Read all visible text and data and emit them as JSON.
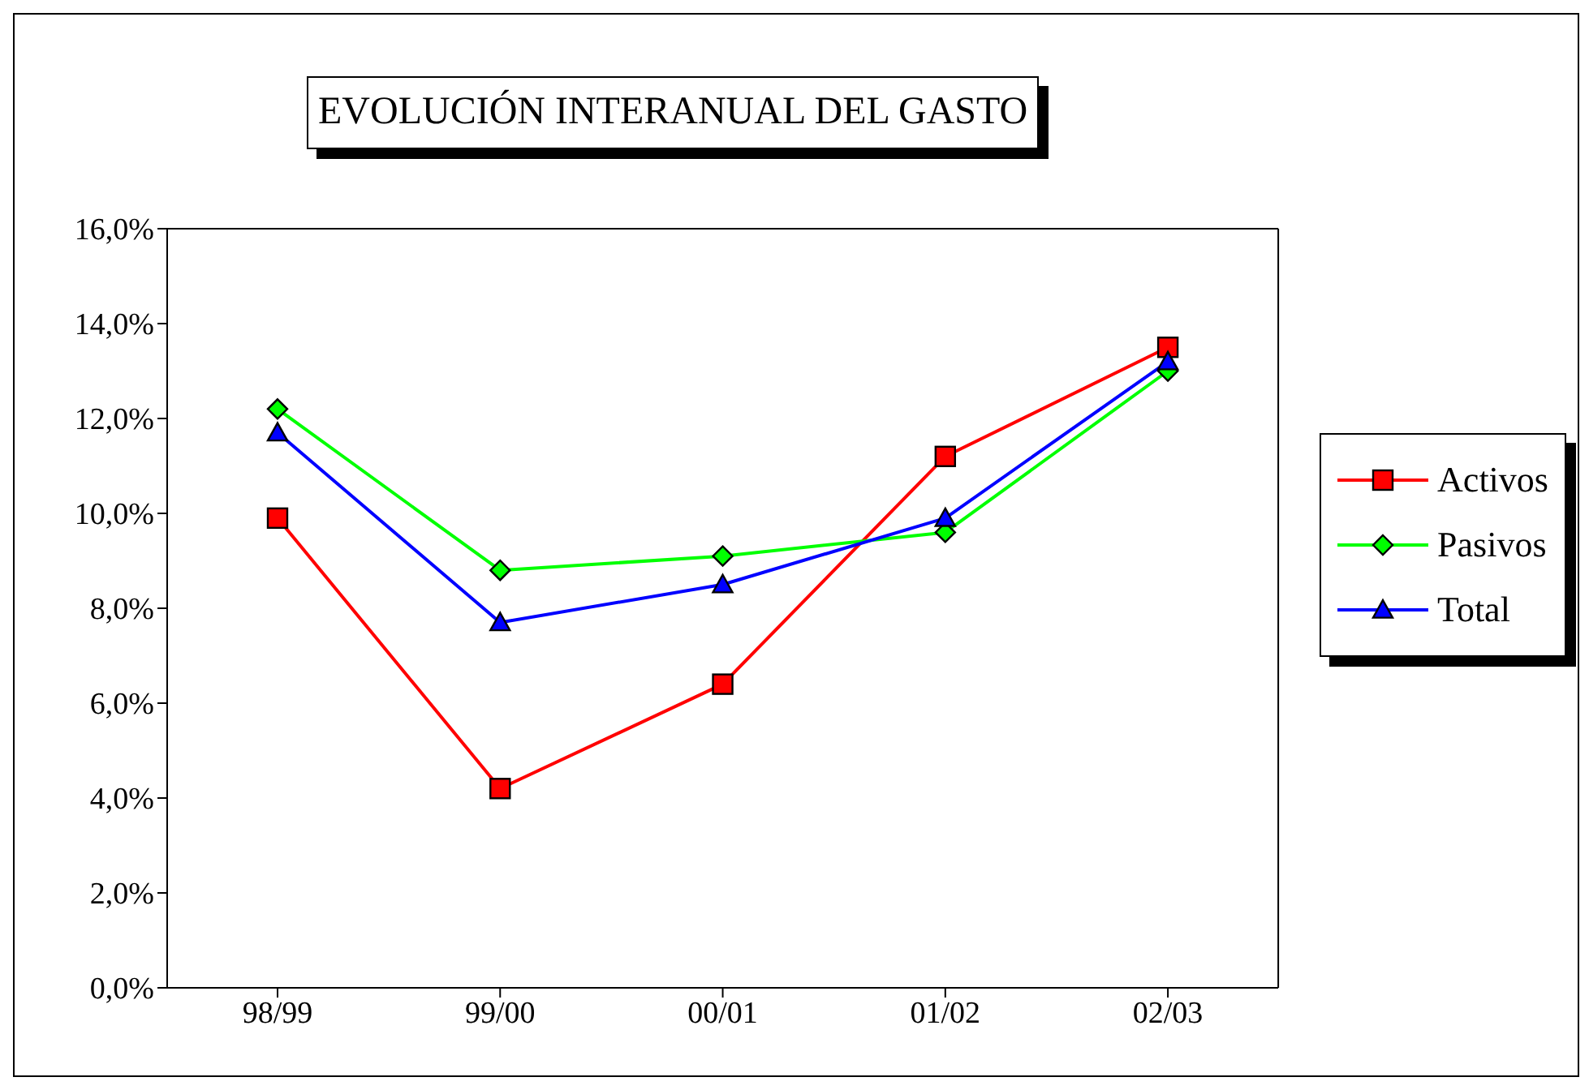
{
  "chart_data": {
    "type": "line",
    "title": "EVOLUCIÓN INTERANUAL DEL GASTO",
    "categories": [
      "98/99",
      "99/00",
      "00/01",
      "01/02",
      "02/03"
    ],
    "series": [
      {
        "name": "Activos",
        "color": "#ff0000",
        "marker": "square",
        "values": [
          9.9,
          4.2,
          6.4,
          11.2,
          13.5
        ]
      },
      {
        "name": "Pasivos",
        "color": "#00ff00",
        "marker": "diamond",
        "values": [
          12.2,
          8.8,
          9.1,
          9.6,
          13.0
        ]
      },
      {
        "name": "Total",
        "color": "#0000ff",
        "marker": "triangle",
        "values": [
          11.7,
          7.7,
          8.5,
          9.9,
          13.2
        ]
      }
    ],
    "ylim": [
      0,
      16
    ],
    "yticks": [
      {
        "value": 0,
        "label": "0,0%"
      },
      {
        "value": 2,
        "label": "2,0%"
      },
      {
        "value": 4,
        "label": "4,0%"
      },
      {
        "value": 6,
        "label": "6,0%"
      },
      {
        "value": 8,
        "label": "8,0%"
      },
      {
        "value": 10,
        "label": "10,0%"
      },
      {
        "value": 12,
        "label": "12,0%"
      },
      {
        "value": 14,
        "label": "14,0%"
      },
      {
        "value": 16,
        "label": "16,0%"
      }
    ],
    "grid": false,
    "legend": "right",
    "line_style": "solid"
  }
}
